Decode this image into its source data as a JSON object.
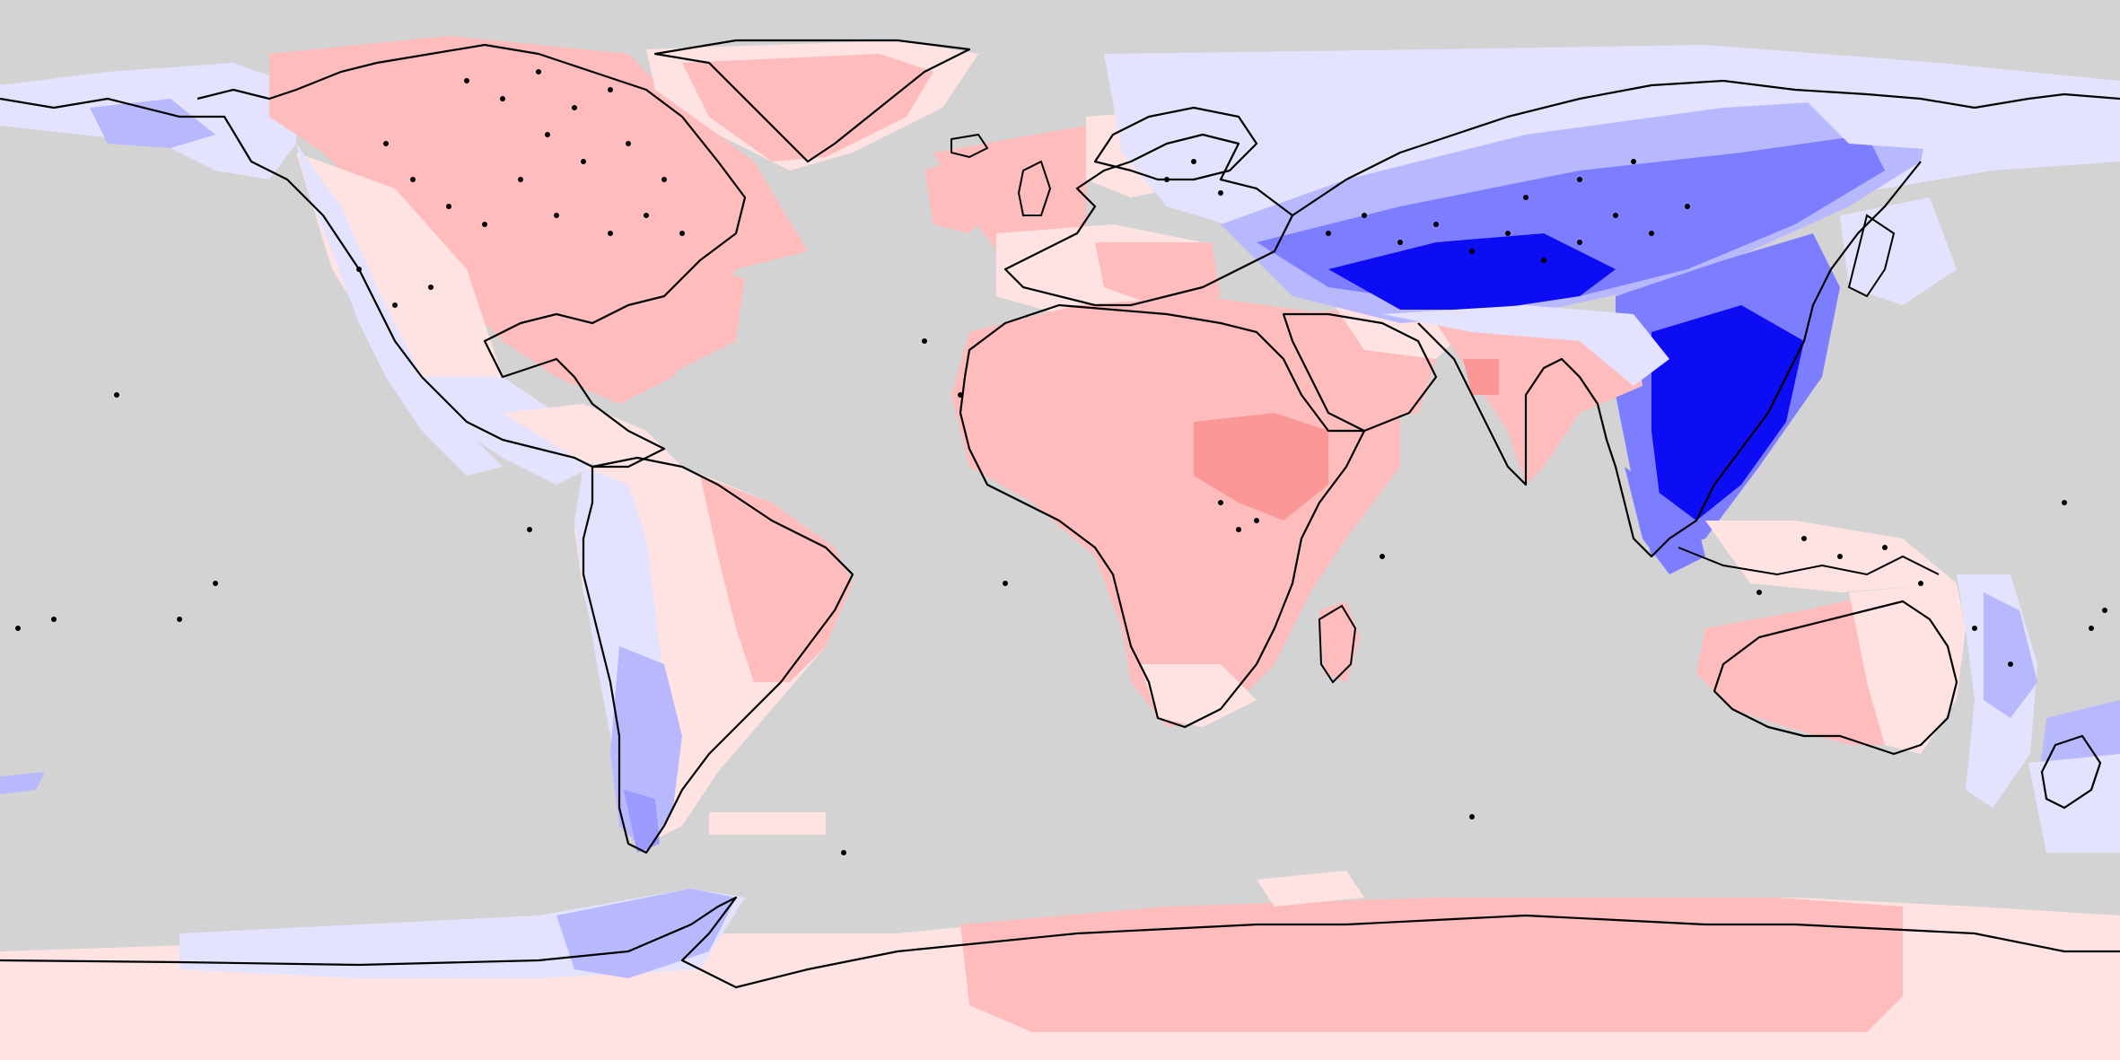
{
  "map": {
    "projection": "equirectangular",
    "ocean_color": "#d3d3d3",
    "coastline_color": "#000000",
    "colors": {
      "warm_light": "#ffe3e3",
      "warm_mid": "#ffbcbc",
      "warm_strong": "#fb9797",
      "cool_light": "#e3e3ff",
      "cool_mid": "#b8b8ff",
      "cool_strong": "#7d7dff",
      "cool_deep": "#0d0df5"
    }
  }
}
